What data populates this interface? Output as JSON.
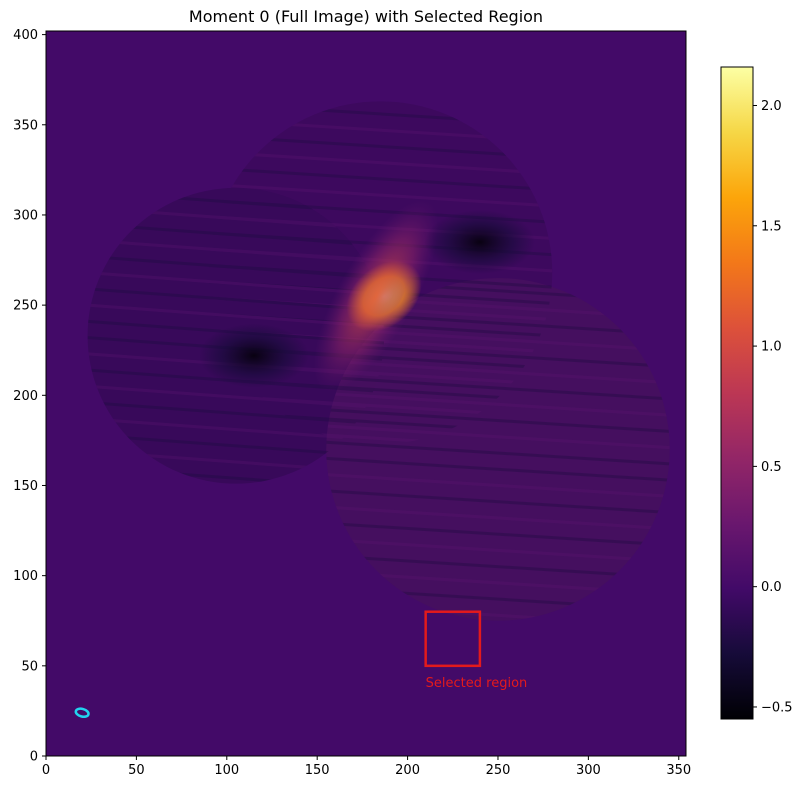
{
  "chart_data": {
    "type": "heatmap",
    "title": "Moment 0 (Full Image) with Selected Region",
    "xlim": [
      0,
      354
    ],
    "ylim": [
      0,
      402
    ],
    "x_ticks": [
      0,
      50,
      100,
      150,
      200,
      250,
      300,
      350
    ],
    "y_ticks": [
      0,
      50,
      100,
      150,
      200,
      250,
      300,
      350,
      400
    ],
    "background_value": 0.0,
    "colormap": "inferno",
    "colorbar": {
      "range": [
        -0.55,
        2.16
      ],
      "ticks": [
        -0.5,
        0.0,
        0.5,
        1.0,
        1.5,
        2.0
      ],
      "tick_labels": [
        "−0.5",
        "0.0",
        "0.5",
        "1.0",
        "1.5",
        "2.0"
      ]
    },
    "emission_fields": [
      {
        "shape": "disc",
        "center": [
          185,
          268
        ],
        "radius": 95
      },
      {
        "shape": "disc",
        "center": [
          105,
          233
        ],
        "radius": 82
      },
      {
        "shape": "disc",
        "center": [
          250,
          170
        ],
        "radius": 95
      }
    ],
    "features": [
      {
        "kind": "peak",
        "center": [
          187,
          255
        ],
        "value": 2.1
      },
      {
        "kind": "ridge",
        "from": [
          205,
          295
        ],
        "to": [
          160,
          215
        ],
        "value": 1.2
      },
      {
        "kind": "trough",
        "center": [
          115,
          222
        ],
        "value": -0.5
      },
      {
        "kind": "trough",
        "center": [
          240,
          285
        ],
        "value": -0.4
      }
    ],
    "selected_region": {
      "x": [
        210,
        240
      ],
      "y": [
        50,
        80
      ],
      "label": "Selected region",
      "color": "#e31a1c"
    },
    "beam": {
      "center": [
        20,
        24
      ],
      "color": "#22d3ee"
    }
  }
}
